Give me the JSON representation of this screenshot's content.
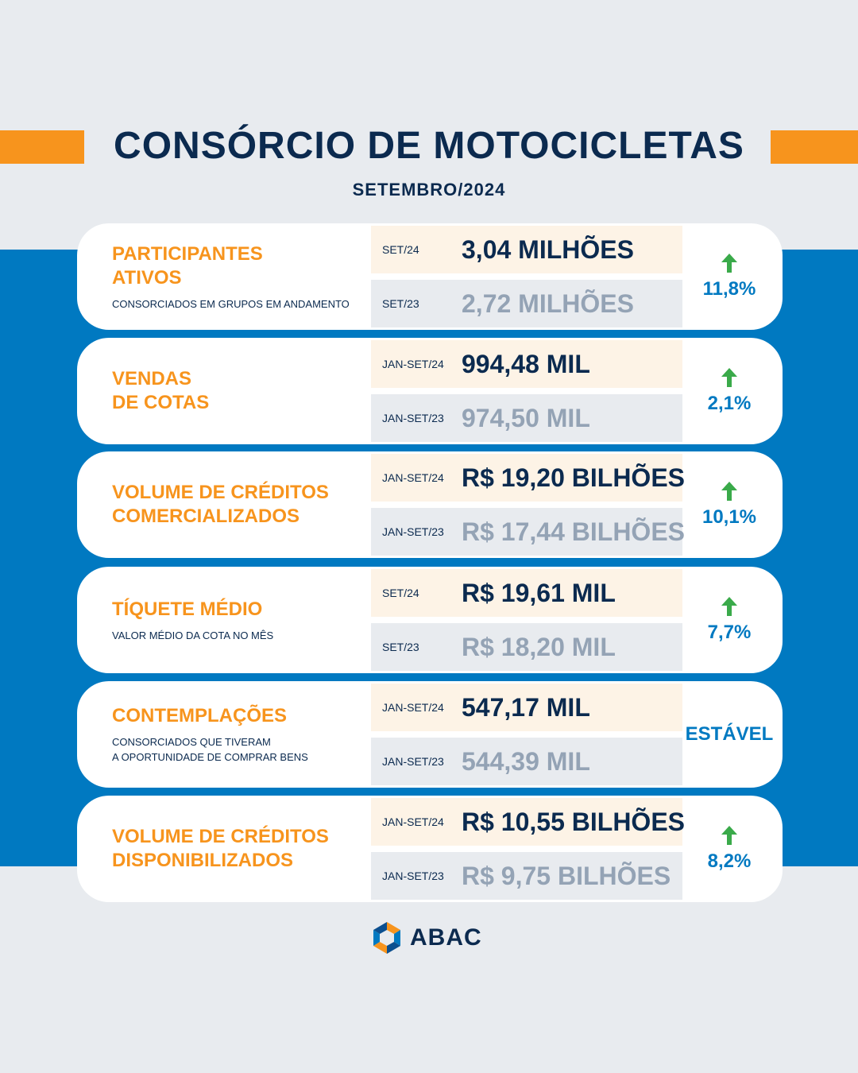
{
  "header": {
    "title": "CONSÓRCIO DE MOTOCICLETAS",
    "subtitle": "SETEMBRO/2024"
  },
  "colors": {
    "accent_orange": "#f7941d",
    "brand_blue": "#0079c1",
    "navy": "#0b2a4f",
    "increase_arrow": "#3aaa4a"
  },
  "cards": [
    {
      "title": "PARTICIPANTES\nATIVOS",
      "description": "CONSORCIADOS EM GRUPOS EM ANDAMENTO",
      "current": {
        "period": "SET/24",
        "value": "3,04 MILHÕES"
      },
      "previous": {
        "period": "SET/23",
        "value": "2,72 MILHÕES"
      },
      "change": "11,8%",
      "trend_icon": "arrow-up-icon"
    },
    {
      "title": "VENDAS\nDE COTAS",
      "description": "",
      "current": {
        "period": "JAN-SET/24",
        "value": "994,48 MIL"
      },
      "previous": {
        "period": "JAN-SET/23",
        "value": "974,50 MIL"
      },
      "change": "2,1%",
      "trend_icon": "arrow-up-icon"
    },
    {
      "title": "VOLUME DE CRÉDITOS\nCOMERCIALIZADOS",
      "description": "",
      "current": {
        "period": "JAN-SET/24",
        "value": "R$ 19,20 BILHÕES"
      },
      "previous": {
        "period": "JAN-SET/23",
        "value": "R$ 17,44 BILHÕES"
      },
      "change": "10,1%",
      "trend_icon": "arrow-up-icon"
    },
    {
      "title": "TÍQUETE MÉDIO",
      "description": "VALOR MÉDIO DA COTA NO MÊS",
      "current": {
        "period": "SET/24",
        "value": "R$ 19,61 MIL"
      },
      "previous": {
        "period": "SET/23",
        "value": "R$ 18,20 MIL"
      },
      "change": "7,7%",
      "trend_icon": "arrow-up-icon"
    },
    {
      "title": "CONTEMPLAÇÕES",
      "description": "CONSORCIADOS QUE TIVERAM\nA OPORTUNIDADE DE COMPRAR BENS",
      "current": {
        "period": "JAN-SET/24",
        "value": "547,17 MIL"
      },
      "previous": {
        "period": "JAN-SET/23",
        "value": "544,39 MIL"
      },
      "change": "ESTÁVEL",
      "trend_icon": ""
    },
    {
      "title": "VOLUME DE CRÉDITOS\nDISPONIBILIZADOS",
      "description": "",
      "current": {
        "period": "JAN-SET/24",
        "value": "R$ 10,55 BILHÕES"
      },
      "previous": {
        "period": "JAN-SET/23",
        "value": "R$ 9,75 BILHÕES"
      },
      "change": "8,2%",
      "trend_icon": "arrow-up-icon"
    }
  ],
  "footer": {
    "logo_text": "ABAC",
    "logo_icon": "abac-logo-icon"
  }
}
